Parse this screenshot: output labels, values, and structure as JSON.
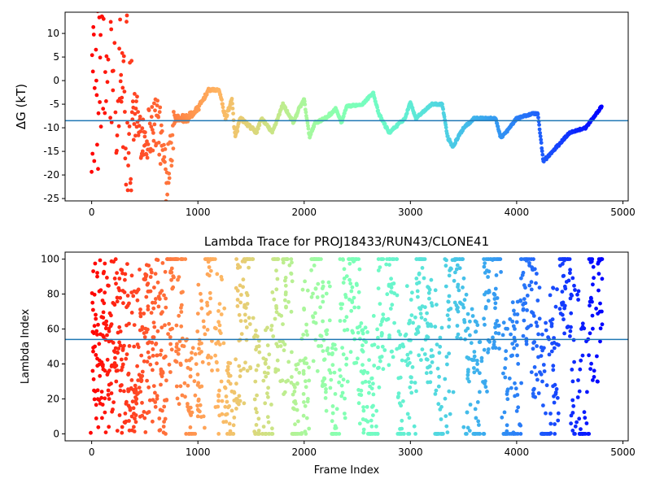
{
  "chart_data": [
    {
      "type": "scatter",
      "title": "",
      "xlabel": "",
      "ylabel": "ΔG (kT)",
      "xlim": [
        -250,
        5050
      ],
      "ylim": [
        -25.5,
        14.5
      ],
      "xticks": [
        0,
        1000,
        2000,
        3000,
        4000,
        5000
      ],
      "yticks": [
        -25,
        -20,
        -15,
        -10,
        -5,
        0,
        5,
        10
      ],
      "hline": -8.5,
      "hline_color": "#1f77b4",
      "colormap": "rainbow (red at frame 0 to violet at end)",
      "grid": false,
      "n_frames": 4800,
      "walk_segments": [
        [
          0,
          0,
          1
        ],
        [
          50,
          0,
          1
        ],
        [
          150,
          10,
          3
        ],
        [
          300,
          0,
          2
        ],
        [
          380,
          -7,
          1
        ],
        [
          500,
          -12,
          2
        ],
        [
          620,
          -8,
          2
        ],
        [
          700,
          -20,
          2
        ],
        [
          780,
          -8,
          0.8
        ],
        [
          900,
          -8,
          0.8
        ],
        [
          1000,
          -6,
          0.6
        ],
        [
          1100,
          -2,
          0.3
        ],
        [
          1200,
          -2,
          0.2
        ],
        [
          1260,
          -8,
          0.6
        ],
        [
          1320,
          -4,
          0.3
        ],
        [
          1350,
          -12,
          0.6
        ],
        [
          1400,
          -8,
          0.4
        ],
        [
          1450,
          -9,
          0.3
        ],
        [
          1500,
          -10,
          0.4
        ],
        [
          1550,
          -11,
          0.4
        ],
        [
          1600,
          -8,
          0.3
        ],
        [
          1700,
          -11,
          0.3
        ],
        [
          1800,
          -5,
          0.3
        ],
        [
          1900,
          -9,
          0.3
        ],
        [
          1950,
          -6,
          0.3
        ],
        [
          2000,
          -4,
          0.3
        ],
        [
          2050,
          -12,
          0.3
        ],
        [
          2100,
          -9,
          0.3
        ],
        [
          2200,
          -8,
          0.3
        ],
        [
          2300,
          -6,
          0.3
        ],
        [
          2350,
          -9,
          0.2
        ],
        [
          2400,
          -5.5,
          0.2
        ],
        [
          2550,
          -5,
          0.2
        ],
        [
          2650,
          -2.5,
          0.2
        ],
        [
          2700,
          -7,
          0.3
        ],
        [
          2800,
          -11,
          0.3
        ],
        [
          2950,
          -8,
          0.2
        ],
        [
          3000,
          -4.5,
          0.2
        ],
        [
          3050,
          -8,
          0.2
        ],
        [
          3200,
          -5,
          0.2
        ],
        [
          3300,
          -5,
          0.2
        ],
        [
          3350,
          -12,
          0.3
        ],
        [
          3400,
          -14,
          0.3
        ],
        [
          3500,
          -10,
          0.3
        ],
        [
          3600,
          -8,
          0.2
        ],
        [
          3800,
          -8,
          0.2
        ],
        [
          3850,
          -12,
          0.3
        ],
        [
          3900,
          -11,
          0.2
        ],
        [
          4000,
          -8,
          0.2
        ],
        [
          4150,
          -7,
          0.2
        ],
        [
          4200,
          -7,
          0.2
        ],
        [
          4250,
          -17,
          0.3
        ],
        [
          4300,
          -16,
          0.3
        ],
        [
          4500,
          -11,
          0.2
        ],
        [
          4650,
          -10,
          0.2
        ],
        [
          4800,
          -5.5,
          0.2
        ]
      ]
    },
    {
      "type": "scatter",
      "title": "Lambda Trace for PROJ18433/RUN43/CLONE41",
      "xlabel": "Frame Index",
      "ylabel": "Lambda Index",
      "xlim": [
        -250,
        5050
      ],
      "ylim": [
        -4,
        104
      ],
      "xticks": [
        0,
        1000,
        2000,
        3000,
        4000,
        5000
      ],
      "yticks": [
        0,
        20,
        40,
        60,
        80,
        100
      ],
      "hline": 54,
      "hline_color": "#1f77b4",
      "colormap": "rainbow (red at frame 0 to violet at end)",
      "grid": false,
      "n_frames": 4800
    }
  ]
}
